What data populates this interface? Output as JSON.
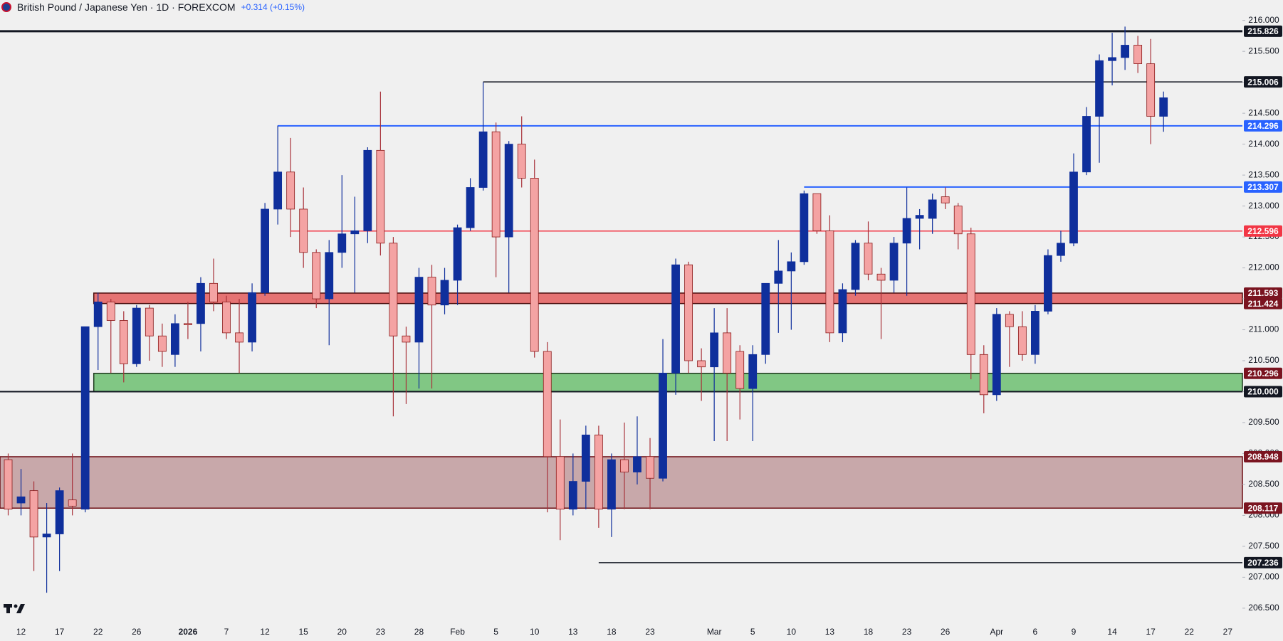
{
  "chart_data": {
    "type": "candlestick",
    "title": "British Pound / Japanese Yen · 1D · FOREXCOM",
    "change": "+0.314 (+0.15%)",
    "up_color": "#0f2f9c",
    "down_color": "#f4a3a3",
    "categories": [
      null,
      "12",
      null,
      null,
      "17",
      null,
      null,
      "22",
      null,
      null,
      "26",
      null,
      null,
      null,
      "2026",
      null,
      null,
      "7",
      null,
      null,
      "12",
      null,
      null,
      "15",
      null,
      null,
      "20",
      null,
      null,
      "23",
      null,
      null,
      "28",
      null,
      null,
      "Feb",
      null,
      null,
      "5",
      null,
      null,
      "10",
      null,
      null,
      "13",
      null,
      null,
      "18",
      null,
      null,
      "23",
      null,
      null,
      null,
      null,
      "Mar",
      null,
      null,
      "5",
      null,
      null,
      "10",
      null,
      null,
      "13",
      null,
      null,
      "18",
      null,
      null,
      "23",
      null,
      null,
      "26",
      null,
      null,
      null,
      "Apr",
      null,
      null,
      "6",
      null,
      null,
      "9",
      null,
      null,
      "14",
      null,
      null,
      "17",
      null,
      null,
      "22",
      null,
      null,
      "27"
    ],
    "open": [
      208.9,
      208.2,
      208.4,
      207.65,
      207.7,
      208.25,
      208.1,
      211.05,
      211.45,
      211.15,
      210.45,
      211.35,
      210.9,
      210.6,
      211.1,
      211.1,
      211.75,
      211.45,
      210.95,
      210.8,
      211.6,
      212.95,
      213.55,
      212.95,
      212.25,
      211.5,
      212.25,
      212.55,
      212.6,
      213.9,
      212.4,
      210.9,
      210.8,
      211.85,
      211.4,
      211.8,
      212.65,
      213.3,
      214.2,
      212.5,
      214.0,
      213.45,
      210.65,
      208.95,
      208.1,
      208.55,
      209.3,
      208.1,
      208.9,
      208.7,
      208.95,
      208.6,
      210.3,
      212.05,
      210.5,
      210.4,
      210.95,
      210.65,
      210.05,
      210.6,
      211.75,
      211.95,
      212.1,
      213.2,
      212.6,
      210.95,
      211.65,
      212.4,
      211.9,
      211.8,
      212.4,
      212.8,
      212.8,
      213.15,
      213.0,
      212.55,
      210.6,
      209.95,
      211.25,
      211.05,
      210.6,
      211.3,
      212.2,
      212.4,
      213.55,
      214.45,
      215.35,
      215.4,
      215.6,
      215.3,
      214.45,
      null,
      null,
      null,
      null,
      null
    ],
    "high": [
      209.0,
      208.75,
      208.55,
      208.2,
      208.45,
      209.0,
      211.05,
      211.6,
      211.5,
      211.3,
      211.4,
      211.4,
      211.1,
      211.25,
      211.45,
      211.85,
      212.15,
      211.55,
      211.5,
      211.75,
      213.05,
      214.3,
      214.1,
      213.3,
      212.3,
      212.45,
      213.5,
      213.15,
      213.95,
      214.85,
      212.5,
      211.05,
      212.0,
      212.05,
      212.0,
      212.7,
      213.45,
      215.0,
      214.35,
      214.05,
      214.45,
      213.75,
      210.8,
      209.55,
      209.0,
      209.45,
      209.45,
      209.0,
      209.5,
      209.6,
      209.25,
      210.85,
      212.15,
      212.1,
      210.7,
      211.35,
      211.35,
      210.75,
      210.75,
      211.75,
      212.45,
      212.25,
      213.25,
      213.2,
      212.85,
      211.75,
      212.45,
      212.75,
      212.0,
      212.5,
      213.3,
      212.95,
      213.2,
      213.3,
      213.05,
      212.65,
      210.75,
      211.35,
      211.3,
      211.3,
      211.4,
      212.3,
      212.6,
      213.85,
      214.6,
      215.45,
      215.8,
      215.9,
      215.75,
      215.7,
      214.85,
      null,
      null,
      null,
      null,
      null
    ],
    "low": [
      208.0,
      208.0,
      207.1,
      206.75,
      207.1,
      208.0,
      208.05,
      210.35,
      210.3,
      210.15,
      210.4,
      210.5,
      210.4,
      210.4,
      210.85,
      210.65,
      211.3,
      210.85,
      210.3,
      210.65,
      211.55,
      212.7,
      212.5,
      212.0,
      211.35,
      210.75,
      212.0,
      211.6,
      212.4,
      212.2,
      209.6,
      209.8,
      210.05,
      210.05,
      211.25,
      211.4,
      212.6,
      213.25,
      211.85,
      211.6,
      213.3,
      210.55,
      208.05,
      207.6,
      208.0,
      208.1,
      207.8,
      207.65,
      208.1,
      208.5,
      208.1,
      208.55,
      209.95,
      210.3,
      209.85,
      209.2,
      209.2,
      209.55,
      209.2,
      210.45,
      210.95,
      211.0,
      212.05,
      212.55,
      210.8,
      210.8,
      211.55,
      211.8,
      210.85,
      211.6,
      211.55,
      212.3,
      212.55,
      212.95,
      212.3,
      210.2,
      209.65,
      209.85,
      210.4,
      210.5,
      210.45,
      211.25,
      212.1,
      212.35,
      213.5,
      213.7,
      214.95,
      215.2,
      215.15,
      214.0,
      214.2,
      null,
      null,
      null,
      null,
      null
    ],
    "close": [
      208.1,
      208.3,
      207.65,
      207.7,
      208.4,
      208.15,
      211.05,
      211.45,
      211.15,
      210.45,
      211.35,
      210.9,
      210.65,
      211.1,
      211.08,
      211.75,
      211.45,
      210.95,
      210.8,
      211.6,
      212.95,
      213.55,
      212.95,
      212.25,
      211.5,
      212.25,
      212.55,
      212.6,
      213.9,
      212.4,
      210.9,
      210.8,
      211.85,
      211.4,
      211.8,
      212.65,
      213.3,
      214.2,
      212.5,
      214.0,
      213.45,
      210.65,
      208.95,
      208.1,
      208.55,
      209.3,
      208.1,
      208.9,
      208.7,
      208.95,
      208.6,
      210.3,
      212.05,
      210.5,
      210.4,
      210.95,
      210.3,
      210.05,
      210.6,
      211.75,
      211.95,
      212.1,
      213.2,
      212.6,
      210.95,
      211.65,
      212.4,
      211.9,
      211.8,
      212.4,
      212.8,
      212.85,
      213.1,
      213.05,
      212.55,
      210.6,
      209.95,
      211.25,
      211.05,
      210.6,
      211.3,
      212.2,
      212.4,
      213.55,
      214.45,
      215.35,
      215.4,
      215.6,
      215.3,
      214.45,
      214.75,
      null,
      null,
      null,
      null,
      null
    ],
    "ylim": [
      206.257,
      216.33
    ],
    "yticks": [
      {
        "value": 206.5,
        "label": "206.500"
      },
      {
        "value": 207,
        "label": "207.000"
      },
      {
        "value": 207.5,
        "label": "207.500"
      },
      {
        "value": 208,
        "label": "208.000"
      },
      {
        "value": 208.5,
        "label": "208.500"
      },
      {
        "value": 209,
        "label": "209.000"
      },
      {
        "value": 209.5,
        "label": "209.500"
      },
      {
        "value": 210,
        "label": "210.000"
      },
      {
        "value": 210.5,
        "label": "210.500"
      },
      {
        "value": 211,
        "label": "211.000"
      },
      {
        "value": 211.5,
        "label": "211.500"
      },
      {
        "value": 212,
        "label": "212.000"
      },
      {
        "value": 212.5,
        "label": "212.500"
      },
      {
        "value": 213,
        "label": "213.000"
      },
      {
        "value": 213.5,
        "label": "213.500"
      },
      {
        "value": 214,
        "label": "214.000"
      },
      {
        "value": 214.5,
        "label": "214.500"
      },
      {
        "value": 215,
        "label": "215.000"
      },
      {
        "value": 215.5,
        "label": "215.500"
      },
      {
        "value": 216,
        "label": "216.000"
      }
    ],
    "lines": [
      {
        "value": 215.826,
        "label": "215.826",
        "color": "#131722"
      },
      {
        "value": 215.006,
        "label": "215.006",
        "color": "#131722"
      },
      {
        "value": 214.296,
        "label": "214.296",
        "color": "#2962ff"
      },
      {
        "value": 213.307,
        "label": "213.307",
        "color": "#2962ff"
      },
      {
        "value": 212.596,
        "label": "212.596",
        "color": "#f23645"
      },
      {
        "value": 207.236,
        "label": "207.236",
        "color": "#131722"
      }
    ],
    "zones": [
      {
        "bounds": [
          {
            "value": 211.593,
            "label": "211.593"
          },
          {
            "value": 211.424,
            "label": "211.424"
          }
        ],
        "fill": "#e57373",
        "border": "#4a0c0c",
        "tag_colors": [
          "#7a1420",
          "#7a1420"
        ]
      },
      {
        "bounds": [
          {
            "value": 210.296,
            "label": "210.296"
          },
          {
            "value": 210,
            "label": "210.000"
          }
        ],
        "fill": "#81c784",
        "border": "#1e3a1e",
        "tag_colors": [
          "#7a1420",
          "#131722"
        ]
      },
      {
        "bounds": [
          {
            "value": 208.948,
            "label": "208.948"
          },
          {
            "value": 208.117,
            "label": "208.117"
          }
        ],
        "fill": "#c8a8aa",
        "border": "#6d0d14",
        "tag_colors": [
          "#7a1420",
          "#7a1420"
        ]
      }
    ]
  }
}
